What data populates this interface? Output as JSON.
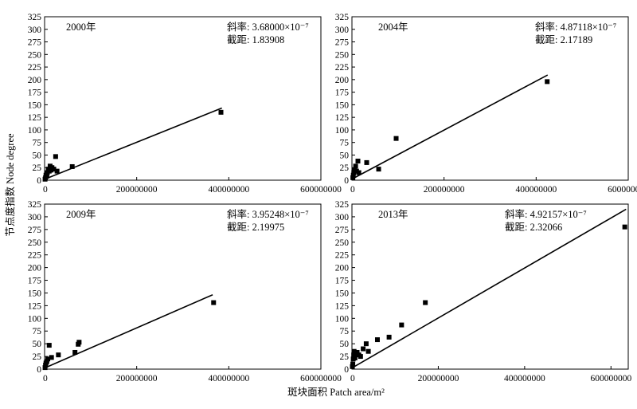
{
  "figure": {
    "xlabel": "斑块面积 Patch area/m²",
    "ylabel": "节点度指数 Node degree"
  },
  "chart_data": [
    {
      "type": "scatter",
      "panel_label": "2000年",
      "slope_label": "斜率: 3.68000×10⁻⁷",
      "intercept_label": "截距: 1.83908",
      "slope": 3.68e-07,
      "intercept": 1.83908,
      "fit_x_range": [
        0,
        385000000
      ],
      "xlim": [
        0,
        600000000
      ],
      "ylim": [
        0,
        325
      ],
      "x_ticks": [
        "0",
        "200000000",
        "400000000",
        "600000000"
      ],
      "y_ticks": [
        "0",
        "25",
        "50",
        "75",
        "100",
        "125",
        "150",
        "175",
        "200",
        "225",
        "250",
        "275",
        "300",
        "325"
      ],
      "points": [
        [
          1000000,
          2
        ],
        [
          2000000,
          5
        ],
        [
          3000000,
          10
        ],
        [
          5000000,
          8
        ],
        [
          6000000,
          15
        ],
        [
          8000000,
          22
        ],
        [
          10000000,
          18
        ],
        [
          12000000,
          28
        ],
        [
          14000000,
          20
        ],
        [
          16000000,
          25
        ],
        [
          20000000,
          22
        ],
        [
          24000000,
          47
        ],
        [
          27000000,
          18
        ],
        [
          60000000,
          27
        ],
        [
          383000000,
          135
        ]
      ]
    },
    {
      "type": "scatter",
      "panel_label": "2004年",
      "slope_label": "斜率: 4.87118×10⁻⁷",
      "intercept_label": "截距: 2.17189",
      "slope": 4.87118e-07,
      "intercept": 2.17189,
      "fit_x_range": [
        0,
        425000000
      ],
      "xlim": [
        0,
        600000000
      ],
      "ylim": [
        0,
        325
      ],
      "x_ticks": [
        "0",
        "200000000",
        "400000000",
        "600000000"
      ],
      "y_ticks": [
        "0",
        "25",
        "50",
        "75",
        "100",
        "125",
        "150",
        "175",
        "200",
        "225",
        "250",
        "275",
        "300",
        "325"
      ],
      "points": [
        [
          2000000,
          5
        ],
        [
          3000000,
          10
        ],
        [
          4000000,
          15
        ],
        [
          6000000,
          20
        ],
        [
          8000000,
          28
        ],
        [
          10000000,
          18
        ],
        [
          13000000,
          38
        ],
        [
          15000000,
          15
        ],
        [
          32000000,
          35
        ],
        [
          58000000,
          22
        ],
        [
          96000000,
          83
        ],
        [
          424000000,
          196
        ]
      ]
    },
    {
      "type": "scatter",
      "panel_label": "2009年",
      "slope_label": "斜率: 3.95248×10⁻⁷",
      "intercept_label": "截距: 2.19975",
      "slope": 3.95248e-07,
      "intercept": 2.19975,
      "fit_x_range": [
        0,
        365000000
      ],
      "xlim": [
        0,
        600000000
      ],
      "ylim": [
        0,
        325
      ],
      "x_ticks": [
        "0",
        "200000000",
        "400000000",
        "600000000"
      ],
      "y_ticks": [
        "0",
        "25",
        "50",
        "75",
        "100",
        "125",
        "150",
        "175",
        "200",
        "225",
        "250",
        "275",
        "300",
        "325"
      ],
      "points": [
        [
          1000000,
          3
        ],
        [
          2000000,
          8
        ],
        [
          3000000,
          12
        ],
        [
          5000000,
          15
        ],
        [
          7000000,
          20
        ],
        [
          10000000,
          47
        ],
        [
          15000000,
          23
        ],
        [
          30000000,
          28
        ],
        [
          66000000,
          33
        ],
        [
          73000000,
          49
        ],
        [
          75000000,
          53
        ],
        [
          367000000,
          131
        ]
      ]
    },
    {
      "type": "scatter",
      "panel_label": "2013年",
      "slope_label": "斜率: 4.92157×10⁻⁷",
      "intercept_label": "截距: 2.32066",
      "slope": 4.92157e-07,
      "intercept": 2.32066,
      "fit_x_range": [
        0,
        635000000
      ],
      "xlim": [
        0,
        640000000
      ],
      "ylim": [
        0,
        325
      ],
      "x_ticks": [
        "0",
        "200000000",
        "400000000",
        "600000000"
      ],
      "y_ticks": [
        "0",
        "25",
        "50",
        "75",
        "100",
        "125",
        "150",
        "175",
        "200",
        "225",
        "250",
        "275",
        "300",
        "325"
      ],
      "points": [
        [
          1000000,
          5
        ],
        [
          2000000,
          10
        ],
        [
          3000000,
          20
        ],
        [
          4000000,
          28
        ],
        [
          5000000,
          35
        ],
        [
          7000000,
          22
        ],
        [
          9000000,
          30
        ],
        [
          12000000,
          33
        ],
        [
          16000000,
          28
        ],
        [
          20000000,
          25
        ],
        [
          26000000,
          40
        ],
        [
          33000000,
          50
        ],
        [
          38000000,
          35
        ],
        [
          59000000,
          58
        ],
        [
          86000000,
          63
        ],
        [
          115000000,
          87
        ],
        [
          170000000,
          131
        ],
        [
          632000000,
          280
        ]
      ]
    }
  ]
}
